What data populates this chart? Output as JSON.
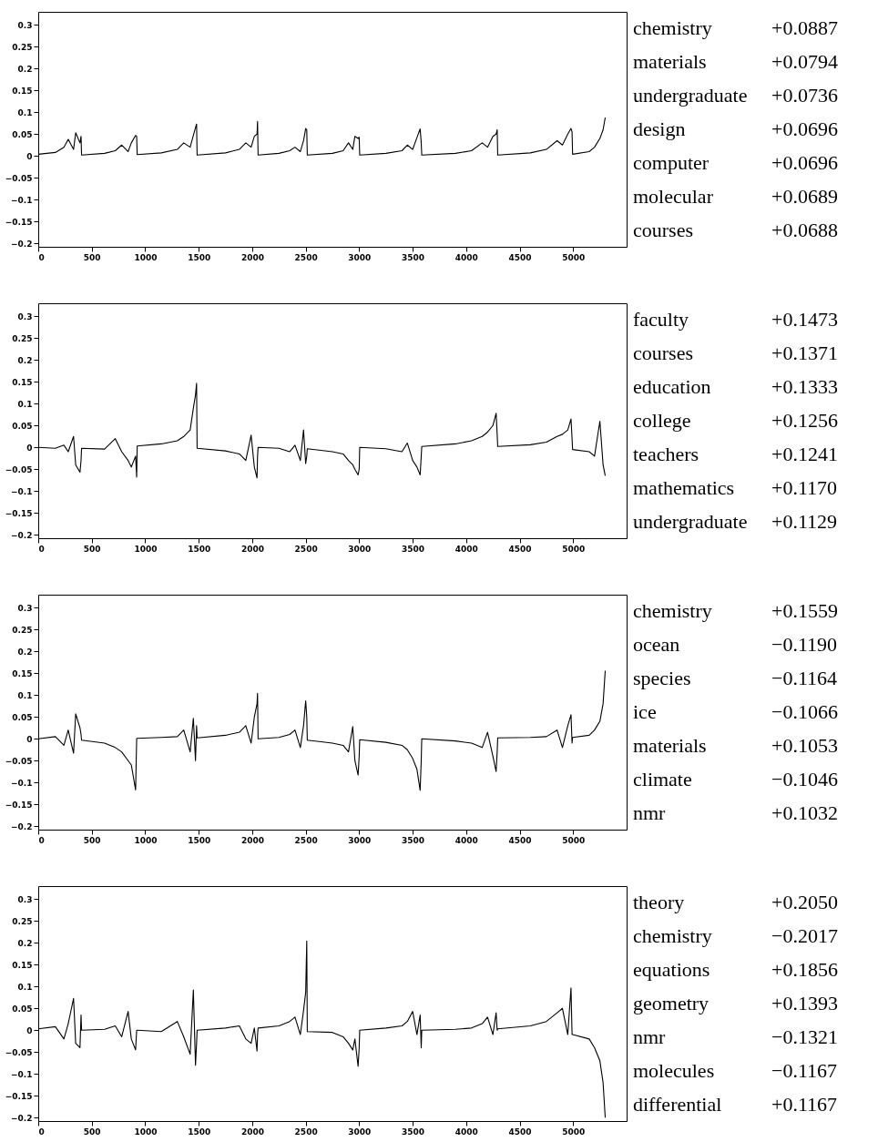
{
  "chart_data": [
    {
      "type": "line",
      "x": [
        0,
        160,
        240,
        280,
        330,
        350,
        390,
        400,
        405,
        620,
        720,
        780,
        840,
        870,
        910,
        920,
        925,
        1150,
        1300,
        1360,
        1420,
        1450,
        1470,
        1480,
        1485,
        1750,
        1880,
        1940,
        1990,
        2020,
        2045,
        2050,
        2055,
        2250,
        2350,
        2400,
        2450,
        2480,
        2500,
        2510,
        2515,
        2750,
        2850,
        2900,
        2940,
        2960,
        2990,
        3000,
        3005,
        3250,
        3400,
        3450,
        3500,
        3540,
        3570,
        3580,
        3585,
        3900,
        4050,
        4150,
        4200,
        4250,
        4280,
        4290,
        4295,
        4600,
        4750,
        4850,
        4900,
        4950,
        4980,
        4990,
        4995,
        5150,
        5200,
        5250,
        5280,
        5300
      ],
      "series": [
        {
          "color": "#000000",
          "values": [
            0.004,
            0.008,
            0.02,
            0.038,
            0.015,
            0.053,
            0.03,
            0.045,
            0.002,
            0.006,
            0.012,
            0.025,
            0.01,
            0.03,
            0.047,
            0.045,
            0.003,
            0.007,
            0.015,
            0.03,
            0.02,
            0.047,
            0.065,
            0.073,
            0.002,
            0.007,
            0.015,
            0.03,
            0.02,
            0.045,
            0.05,
            0.079,
            0.002,
            0.006,
            0.012,
            0.02,
            0.01,
            0.035,
            0.063,
            0.06,
            0.002,
            0.006,
            0.012,
            0.03,
            0.015,
            0.045,
            0.04,
            0.043,
            0.002,
            0.006,
            0.012,
            0.025,
            0.015,
            0.042,
            0.062,
            0.03,
            0.002,
            0.006,
            0.012,
            0.03,
            0.02,
            0.045,
            0.05,
            0.06,
            0.002,
            0.007,
            0.015,
            0.035,
            0.025,
            0.05,
            0.063,
            0.055,
            0.004,
            0.01,
            0.02,
            0.04,
            0.06,
            0.088
          ]
        }
      ],
      "xlim": [
        0,
        5500
      ],
      "ylim": [
        -0.208,
        0.33
      ],
      "xticks": [
        0,
        500,
        1000,
        1500,
        2000,
        2500,
        3000,
        3500,
        4000,
        4500,
        5000
      ],
      "yticks": [
        -0.2,
        -0.15,
        -0.1,
        -0.05,
        0,
        0.05,
        0.1,
        0.15,
        0.2,
        0.25,
        0.3
      ],
      "annotations": [
        "chemistry +0.0887",
        "materials +0.0794",
        "undergraduate +0.0736",
        "design +0.0696",
        "computer +0.0696",
        "molecular +0.0689",
        "courses +0.0688"
      ]
    },
    {
      "type": "line",
      "x": [
        0,
        160,
        240,
        280,
        330,
        350,
        390,
        400,
        405,
        620,
        720,
        780,
        840,
        870,
        910,
        920,
        925,
        1150,
        1300,
        1360,
        1420,
        1450,
        1470,
        1480,
        1485,
        1750,
        1880,
        1940,
        1990,
        2020,
        2045,
        2050,
        2055,
        2250,
        2350,
        2400,
        2450,
        2480,
        2500,
        2510,
        2515,
        2750,
        2850,
        2900,
        2940,
        2960,
        2990,
        3000,
        3005,
        3250,
        3400,
        3450,
        3500,
        3540,
        3570,
        3580,
        3585,
        3900,
        4050,
        4150,
        4200,
        4250,
        4280,
        4290,
        4295,
        4600,
        4750,
        4850,
        4900,
        4950,
        4980,
        4990,
        4995,
        5150,
        5200,
        5250,
        5280,
        5300
      ],
      "series": [
        {
          "color": "#000000",
          "values": [
            0.0,
            -0.002,
            0.005,
            -0.01,
            0.025,
            -0.04,
            -0.057,
            -0.03,
            -0.002,
            -0.004,
            0.02,
            -0.01,
            -0.03,
            -0.045,
            -0.02,
            -0.068,
            0.003,
            0.008,
            0.015,
            0.025,
            0.04,
            0.09,
            0.12,
            0.147,
            -0.002,
            -0.008,
            -0.015,
            -0.03,
            0.028,
            -0.045,
            -0.07,
            -0.02,
            0.0,
            -0.002,
            -0.01,
            0.005,
            -0.03,
            0.04,
            -0.037,
            -0.02,
            -0.003,
            -0.01,
            -0.015,
            -0.03,
            -0.04,
            -0.05,
            -0.063,
            -0.05,
            0.0,
            -0.003,
            -0.01,
            0.01,
            -0.03,
            -0.045,
            -0.063,
            -0.02,
            0.002,
            0.008,
            0.015,
            0.025,
            0.035,
            0.05,
            0.078,
            0.03,
            0.002,
            0.006,
            0.012,
            0.025,
            0.03,
            0.04,
            0.065,
            0.02,
            -0.005,
            -0.01,
            -0.02,
            0.06,
            -0.04,
            -0.065
          ]
        }
      ],
      "xlim": [
        0,
        5500
      ],
      "ylim": [
        -0.208,
        0.33
      ],
      "xticks": [
        0,
        500,
        1000,
        1500,
        2000,
        2500,
        3000,
        3500,
        4000,
        4500,
        5000
      ],
      "yticks": [
        -0.2,
        -0.15,
        -0.1,
        -0.05,
        0,
        0.05,
        0.1,
        0.15,
        0.2,
        0.25,
        0.3
      ],
      "annotations": [
        "faculty +0.1473",
        "courses +0.1371",
        "education +0.1333",
        "college +0.1256",
        "teachers +0.1241",
        "mathematics +0.1170",
        "undergraduate +0.1129"
      ]
    },
    {
      "type": "line",
      "x": [
        0,
        160,
        240,
        280,
        330,
        350,
        390,
        400,
        405,
        620,
        720,
        780,
        840,
        870,
        910,
        920,
        925,
        1150,
        1300,
        1360,
        1420,
        1450,
        1470,
        1480,
        1485,
        1750,
        1880,
        1940,
        1990,
        2020,
        2045,
        2050,
        2055,
        2250,
        2350,
        2400,
        2450,
        2480,
        2500,
        2510,
        2515,
        2750,
        2850,
        2900,
        2940,
        2960,
        2990,
        3000,
        3005,
        3250,
        3400,
        3450,
        3500,
        3540,
        3570,
        3580,
        3585,
        3900,
        4050,
        4150,
        4200,
        4250,
        4280,
        4290,
        4295,
        4600,
        4750,
        4850,
        4900,
        4950,
        4980,
        4990,
        4995,
        5150,
        5200,
        5250,
        5280,
        5300
      ],
      "series": [
        {
          "color": "#000000",
          "values": [
            0.0,
            0.005,
            -0.015,
            0.02,
            -0.033,
            0.057,
            0.025,
            0.01,
            -0.003,
            -0.01,
            -0.02,
            -0.03,
            -0.05,
            -0.06,
            -0.117,
            0.0,
            0.001,
            0.003,
            0.005,
            0.02,
            -0.03,
            0.047,
            -0.05,
            0.03,
            0.002,
            0.008,
            0.015,
            0.03,
            -0.01,
            0.05,
            0.08,
            0.104,
            0.0,
            0.003,
            0.01,
            0.02,
            -0.02,
            0.03,
            0.087,
            0.05,
            -0.003,
            -0.01,
            -0.015,
            -0.03,
            0.028,
            -0.05,
            -0.083,
            -0.04,
            -0.002,
            -0.008,
            -0.015,
            -0.025,
            -0.045,
            -0.07,
            -0.118,
            -0.05,
            0.0,
            -0.005,
            -0.01,
            -0.02,
            0.015,
            -0.04,
            -0.075,
            -0.03,
            0.002,
            0.003,
            0.005,
            0.02,
            -0.02,
            0.03,
            0.055,
            -0.01,
            0.003,
            0.008,
            0.02,
            0.04,
            0.08,
            0.156
          ]
        }
      ],
      "xlim": [
        0,
        5500
      ],
      "ylim": [
        -0.208,
        0.33
      ],
      "xticks": [
        0,
        500,
        1000,
        1500,
        2000,
        2500,
        3000,
        3500,
        4000,
        4500,
        5000
      ],
      "yticks": [
        -0.2,
        -0.15,
        -0.1,
        -0.05,
        0,
        0.05,
        0.1,
        0.15,
        0.2,
        0.25,
        0.3
      ],
      "annotations": [
        "chemistry +0.1559",
        "ocean −0.1190",
        "species −0.1164",
        "ice −0.1066",
        "materials +0.1053",
        "climate −0.1046",
        "nmr +0.1032"
      ]
    },
    {
      "type": "line",
      "x": [
        0,
        160,
        240,
        280,
        330,
        350,
        390,
        400,
        405,
        620,
        720,
        780,
        840,
        870,
        910,
        920,
        925,
        1150,
        1300,
        1360,
        1420,
        1450,
        1470,
        1480,
        1485,
        1750,
        1880,
        1940,
        1990,
        2020,
        2045,
        2050,
        2055,
        2250,
        2350,
        2400,
        2450,
        2480,
        2500,
        2510,
        2515,
        2750,
        2850,
        2900,
        2940,
        2960,
        2990,
        3000,
        3005,
        3250,
        3400,
        3450,
        3500,
        3540,
        3570,
        3580,
        3585,
        3900,
        4050,
        4150,
        4200,
        4250,
        4280,
        4290,
        4295,
        4600,
        4750,
        4850,
        4900,
        4950,
        4980,
        4990,
        4995,
        5150,
        5200,
        5250,
        5280,
        5300
      ],
      "series": [
        {
          "color": "#000000",
          "values": [
            0.003,
            0.008,
            -0.02,
            0.015,
            0.073,
            -0.03,
            -0.04,
            0.035,
            0.0,
            0.002,
            0.01,
            -0.015,
            0.043,
            -0.02,
            -0.045,
            0.0,
            0.0,
            -0.003,
            0.02,
            -0.015,
            -0.055,
            0.092,
            -0.08,
            -0.03,
            0.0,
            0.005,
            0.01,
            -0.02,
            -0.03,
            0.005,
            -0.048,
            -0.01,
            0.005,
            0.01,
            0.02,
            0.03,
            -0.01,
            0.045,
            0.087,
            0.204,
            -0.003,
            -0.005,
            -0.015,
            -0.03,
            -0.045,
            -0.02,
            -0.083,
            -0.04,
            0.0,
            0.005,
            0.01,
            0.02,
            0.043,
            -0.01,
            0.035,
            -0.04,
            0.0,
            0.002,
            0.005,
            0.015,
            0.03,
            -0.01,
            0.04,
            0.0,
            0.003,
            0.01,
            0.02,
            0.04,
            0.05,
            -0.01,
            0.097,
            -0.01,
            -0.01,
            -0.02,
            -0.04,
            -0.07,
            -0.12,
            -0.2
          ]
        }
      ],
      "xlim": [
        0,
        5500
      ],
      "ylim": [
        -0.208,
        0.33
      ],
      "xticks": [
        0,
        500,
        1000,
        1500,
        2000,
        2500,
        3000,
        3500,
        4000,
        4500,
        5000
      ],
      "yticks": [
        -0.2,
        -0.15,
        -0.1,
        -0.05,
        0,
        0.05,
        0.1,
        0.15,
        0.2,
        0.25,
        0.3
      ],
      "annotations": [
        "theory +0.2050",
        "chemistry −0.2017",
        "equations +0.1856",
        "geometry +0.1393",
        "nmr −0.1321",
        "molecules −0.1167",
        "differential +0.1167"
      ]
    }
  ]
}
